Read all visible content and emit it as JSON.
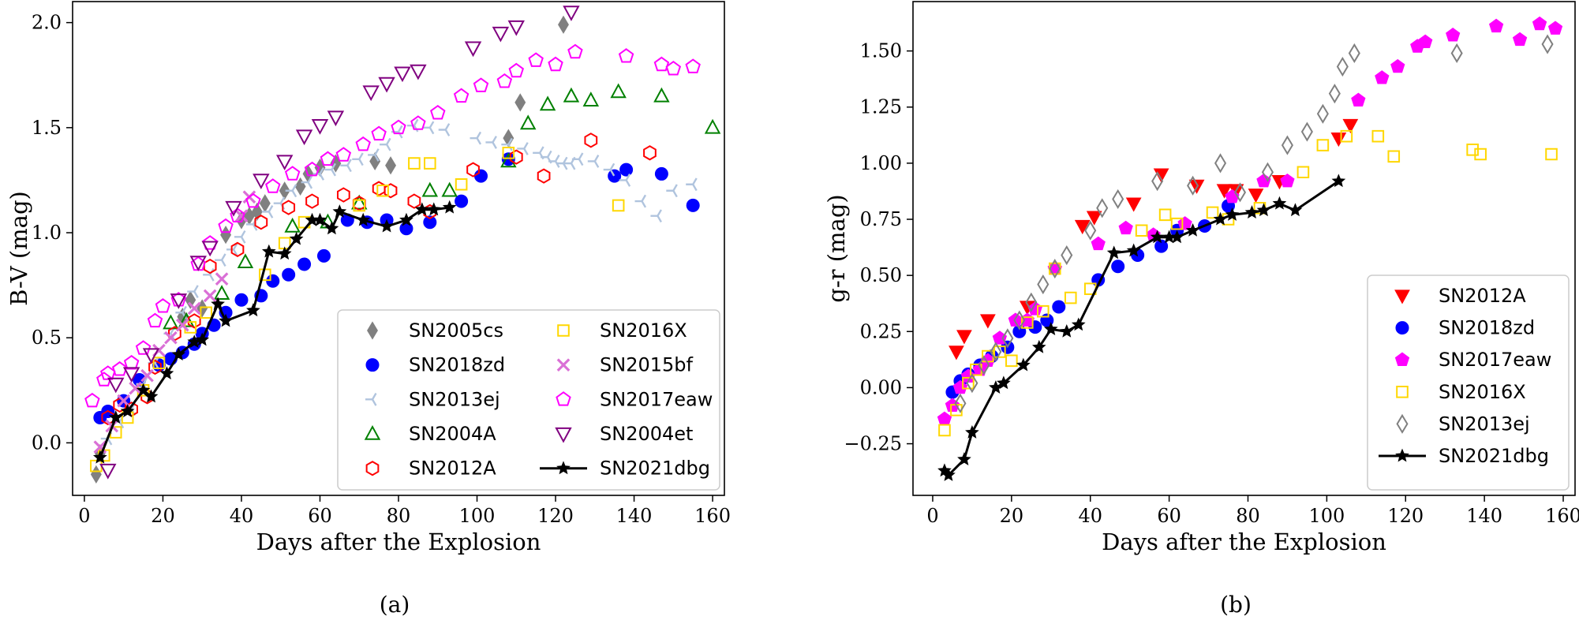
{
  "figure": {
    "panel_labels": [
      "(a)",
      "(b)"
    ]
  },
  "chart_data": [
    {
      "type": "scatter",
      "title": "",
      "xlabel": "Days after the Explosion",
      "ylabel": "B-V (mag)",
      "xlim": [
        -3,
        163
      ],
      "ylim": [
        -0.25,
        2.1
      ],
      "xticks": [
        0,
        20,
        40,
        60,
        80,
        100,
        120,
        140,
        160
      ],
      "yticks": [
        0.0,
        0.5,
        1.0,
        1.5,
        2.0
      ],
      "xtick_labels": [
        "0",
        "20",
        "40",
        "60",
        "80",
        "100",
        "120",
        "140",
        "160"
      ],
      "ytick_labels": [
        "0.0",
        "0.5",
        "1.0",
        "1.5",
        "2.0"
      ],
      "grid": false,
      "legend_position": "lower-right",
      "legend_columns": 2,
      "series": [
        {
          "name": "SN2005cs",
          "marker": "diamond",
          "color": "#808080",
          "filled": true,
          "x": [
            3,
            4,
            25,
            27,
            30,
            36,
            40,
            42,
            44,
            46,
            51,
            55,
            57,
            60,
            64,
            74,
            78,
            108,
            111,
            122
          ],
          "y": [
            -0.15,
            -0.05,
            0.6,
            0.68,
            0.64,
            0.99,
            1.06,
            1.08,
            1.1,
            1.14,
            1.2,
            1.22,
            1.28,
            1.31,
            1.33,
            1.34,
            1.32,
            1.45,
            1.62,
            1.99
          ]
        },
        {
          "name": "SN2018zd",
          "marker": "circle",
          "color": "#0000ff",
          "filled": true,
          "x": [
            4,
            6,
            10,
            14,
            19,
            22,
            25,
            28,
            30,
            33,
            36,
            40,
            45,
            48,
            52,
            56,
            61,
            67,
            72,
            77,
            82,
            88,
            96,
            101,
            108,
            135,
            138,
            147,
            155
          ],
          "y": [
            0.12,
            0.15,
            0.2,
            0.3,
            0.37,
            0.4,
            0.43,
            0.47,
            0.52,
            0.56,
            0.62,
            0.68,
            0.7,
            0.77,
            0.8,
            0.85,
            0.89,
            1.06,
            1.05,
            1.06,
            1.02,
            1.05,
            1.15,
            1.27,
            1.35,
            1.27,
            1.3,
            1.28,
            1.13
          ]
        },
        {
          "name": "SN2013ej",
          "marker": "tri",
          "color": "#b0c4de",
          "filled": false,
          "x": [
            6,
            9,
            12,
            15,
            18,
            22,
            25,
            28,
            32,
            35,
            38,
            40,
            43,
            47,
            50,
            53,
            57,
            60,
            63,
            67,
            70,
            74,
            77,
            80,
            84,
            88,
            92,
            100,
            104,
            108,
            112,
            116,
            118,
            120,
            122,
            124,
            126,
            130,
            134,
            138,
            142,
            146,
            150,
            155
          ],
          "y": [
            0.02,
            0.1,
            0.16,
            0.28,
            0.38,
            0.52,
            0.62,
            0.72,
            0.8,
            0.87,
            0.92,
            0.98,
            1.04,
            1.1,
            1.14,
            1.2,
            1.24,
            1.28,
            1.3,
            1.32,
            1.35,
            1.37,
            1.42,
            1.48,
            1.51,
            1.5,
            1.49,
            1.45,
            1.43,
            1.42,
            1.4,
            1.38,
            1.36,
            1.34,
            1.33,
            1.33,
            1.35,
            1.34,
            1.3,
            1.25,
            1.15,
            1.08,
            1.2,
            1.23
          ]
        },
        {
          "name": "SN2004A",
          "marker": "triangle",
          "color": "#008000",
          "filled": false,
          "x": [
            22,
            26,
            35,
            41,
            53,
            62,
            70,
            88,
            93,
            108,
            113,
            118,
            124,
            129,
            136,
            147,
            160
          ],
          "y": [
            0.57,
            0.58,
            0.71,
            0.86,
            1.03,
            1.05,
            1.14,
            1.2,
            1.2,
            1.34,
            1.52,
            1.61,
            1.65,
            1.63,
            1.67,
            1.65,
            1.5
          ]
        },
        {
          "name": "SN2012A",
          "marker": "hexagon",
          "color": "#ff0000",
          "filled": false,
          "x": [
            6,
            9,
            12,
            16,
            18,
            23,
            28,
            32,
            39,
            45,
            52,
            58,
            66,
            70,
            75,
            78,
            84,
            88,
            99,
            110,
            117,
            129,
            144
          ],
          "y": [
            0.12,
            0.18,
            0.16,
            0.22,
            0.36,
            0.52,
            0.58,
            0.84,
            0.92,
            1.05,
            1.12,
            1.15,
            1.18,
            1.14,
            1.21,
            1.2,
            1.15,
            1.1,
            1.3,
            1.36,
            1.27,
            1.44,
            1.38
          ]
        },
        {
          "name": "SN2016X",
          "marker": "square",
          "color": "#ffd700",
          "filled": false,
          "x": [
            3,
            5,
            8,
            11,
            15,
            19,
            27,
            31,
            46,
            51,
            56,
            70,
            76,
            84,
            88,
            96,
            108,
            136
          ],
          "y": [
            -0.11,
            -0.06,
            0.05,
            0.12,
            0.25,
            0.38,
            0.55,
            0.62,
            0.8,
            0.95,
            1.05,
            1.13,
            1.2,
            1.33,
            1.33,
            1.23,
            1.38,
            1.13
          ]
        },
        {
          "name": "SN2015bf",
          "marker": "x",
          "color": "#da70d6",
          "filled": false,
          "x": [
            4,
            7,
            10,
            13,
            16,
            19,
            22,
            25,
            28,
            32,
            35,
            40,
            42
          ],
          "y": [
            -0.02,
            0.08,
            0.2,
            0.26,
            0.32,
            0.44,
            0.5,
            0.56,
            0.64,
            0.7,
            0.78,
            1.08,
            1.17
          ]
        },
        {
          "name": "SN2017eaw",
          "marker": "pentagon",
          "color": "#ff00ff",
          "filled": false,
          "x": [
            2,
            5,
            6,
            9,
            12,
            15,
            18,
            20,
            24,
            29,
            32,
            36,
            39,
            43,
            48,
            53,
            58,
            62,
            66,
            71,
            75,
            80,
            85,
            90,
            96,
            101,
            107,
            110,
            115,
            120,
            125,
            138,
            147,
            150,
            155
          ],
          "y": [
            0.2,
            0.3,
            0.33,
            0.35,
            0.38,
            0.45,
            0.58,
            0.65,
            0.68,
            0.85,
            0.95,
            1.03,
            1.08,
            1.15,
            1.22,
            1.28,
            1.3,
            1.35,
            1.37,
            1.42,
            1.47,
            1.5,
            1.52,
            1.57,
            1.65,
            1.7,
            1.72,
            1.77,
            1.82,
            1.8,
            1.86,
            1.84,
            1.8,
            1.78,
            1.79
          ]
        },
        {
          "name": "SN2004et",
          "marker": "triangle-down",
          "color": "#800080",
          "filled": false,
          "x": [
            6,
            8,
            12,
            17,
            24,
            29,
            32,
            38,
            45,
            51,
            56,
            60,
            64,
            73,
            77,
            81,
            85,
            99,
            106,
            110,
            124
          ],
          "y": [
            -0.13,
            0.28,
            0.33,
            0.42,
            0.68,
            0.86,
            0.93,
            1.12,
            1.25,
            1.34,
            1.46,
            1.51,
            1.55,
            1.67,
            1.71,
            1.76,
            1.77,
            1.88,
            1.95,
            1.98,
            2.05
          ]
        },
        {
          "name": "SN2021dbg",
          "marker": "star",
          "color": "#000000",
          "filled": true,
          "line": true,
          "x": [
            4,
            8,
            11,
            15,
            17,
            21,
            24,
            28,
            30,
            34,
            36,
            43,
            47,
            51,
            54,
            58,
            60,
            63,
            65,
            71,
            77,
            82,
            86,
            89,
            93
          ],
          "y": [
            -0.07,
            0.12,
            0.15,
            0.25,
            0.22,
            0.33,
            0.42,
            0.48,
            0.49,
            0.66,
            0.58,
            0.63,
            0.91,
            0.9,
            0.97,
            1.06,
            1.06,
            1.02,
            1.1,
            1.06,
            1.03,
            1.06,
            1.11,
            1.11,
            1.12
          ]
        }
      ]
    },
    {
      "type": "scatter",
      "title": "",
      "xlabel": "Days after the Explosion",
      "ylabel": "g-r (mag)",
      "xlim": [
        -5,
        163
      ],
      "ylim": [
        -0.48,
        1.72
      ],
      "xticks": [
        0,
        20,
        40,
        60,
        80,
        100,
        120,
        140,
        160
      ],
      "yticks": [
        -0.25,
        0.0,
        0.25,
        0.5,
        0.75,
        1.0,
        1.25,
        1.5
      ],
      "xtick_labels": [
        "0",
        "20",
        "40",
        "60",
        "80",
        "100",
        "120",
        "140",
        "160"
      ],
      "ytick_labels": [
        "−0.25",
        "0.00",
        "0.25",
        "0.50",
        "0.75",
        "1.00",
        "1.25",
        "1.50"
      ],
      "grid": false,
      "legend_position": "lower-right",
      "legend_columns": 1,
      "series": [
        {
          "name": "SN2012A",
          "marker": "triangle-down",
          "color": "#ff0000",
          "filled": true,
          "x": [
            6,
            8,
            14,
            24,
            38,
            41,
            51,
            58,
            67,
            74,
            77,
            82,
            88,
            103,
            106
          ],
          "y": [
            0.16,
            0.23,
            0.3,
            0.36,
            0.72,
            0.76,
            0.82,
            0.95,
            0.9,
            0.88,
            0.88,
            0.86,
            0.92,
            1.11,
            1.17
          ]
        },
        {
          "name": "SN2018zd",
          "marker": "circle",
          "color": "#0000ff",
          "filled": true,
          "x": [
            5,
            7,
            9,
            12,
            15,
            19,
            22,
            26,
            29,
            32,
            42,
            47,
            52,
            58,
            62,
            69,
            75
          ],
          "y": [
            -0.02,
            0.03,
            0.06,
            0.1,
            0.14,
            0.18,
            0.25,
            0.27,
            0.3,
            0.36,
            0.48,
            0.54,
            0.59,
            0.63,
            0.7,
            0.72,
            0.81
          ]
        },
        {
          "name": "SN2017eaw",
          "marker": "pentagon",
          "color": "#ff00ff",
          "filled": true,
          "x": [
            3,
            5,
            7,
            9,
            12,
            14,
            17,
            21,
            24,
            26,
            31,
            42,
            49,
            56,
            64,
            76,
            84,
            90,
            108,
            114,
            118,
            123,
            125,
            132,
            143,
            149,
            154,
            158
          ],
          "y": [
            -0.14,
            -0.08,
            0.0,
            0.05,
            0.08,
            0.12,
            0.22,
            0.3,
            0.3,
            0.35,
            0.53,
            0.64,
            0.71,
            0.68,
            0.73,
            0.85,
            0.92,
            0.92,
            1.28,
            1.38,
            1.43,
            1.52,
            1.54,
            1.57,
            1.61,
            1.55,
            1.62,
            1.6
          ]
        },
        {
          "name": "SN2016X",
          "marker": "square",
          "color": "#ffd700",
          "filled": false,
          "x": [
            3,
            6,
            9,
            11,
            14,
            17,
            20,
            24,
            28,
            31,
            35,
            40,
            53,
            59,
            62,
            71,
            75,
            83,
            94,
            99,
            105,
            113,
            117,
            137,
            139,
            157
          ],
          "y": [
            -0.19,
            -0.1,
            0.02,
            0.08,
            0.14,
            0.16,
            0.12,
            0.29,
            0.34,
            0.53,
            0.4,
            0.44,
            0.7,
            0.77,
            0.73,
            0.78,
            0.75,
            0.8,
            0.96,
            1.08,
            1.12,
            1.12,
            1.03,
            1.06,
            1.04,
            1.04
          ]
        },
        {
          "name": "SN2013ej",
          "marker": "diamond",
          "color": "#808080",
          "filled": false,
          "x": [
            7,
            10,
            13,
            16,
            19,
            22,
            25,
            28,
            31,
            34,
            40,
            43,
            47,
            57,
            66,
            73,
            78,
            85,
            90,
            95,
            99,
            102,
            104,
            107,
            133,
            156
          ],
          "y": [
            -0.07,
            0.02,
            0.1,
            0.16,
            0.22,
            0.3,
            0.38,
            0.46,
            0.53,
            0.59,
            0.7,
            0.8,
            0.84,
            0.92,
            0.9,
            1.0,
            0.87,
            0.96,
            1.08,
            1.14,
            1.22,
            1.31,
            1.43,
            1.49,
            1.49,
            1.53
          ]
        },
        {
          "name": "SN2021dbg",
          "marker": "star",
          "color": "#000000",
          "filled": true,
          "line": true,
          "x": [
            3,
            4,
            8,
            10,
            16,
            18,
            23,
            27,
            30,
            34,
            37,
            46,
            51,
            57,
            60,
            62,
            66,
            73,
            76,
            81,
            84,
            88,
            92,
            103
          ],
          "y": [
            -0.37,
            -0.39,
            -0.32,
            -0.2,
            0.0,
            0.02,
            0.1,
            0.18,
            0.26,
            0.25,
            0.28,
            0.6,
            0.61,
            0.67,
            0.67,
            0.67,
            0.7,
            0.75,
            0.77,
            0.78,
            0.79,
            0.82,
            0.79,
            0.92
          ]
        }
      ]
    }
  ]
}
